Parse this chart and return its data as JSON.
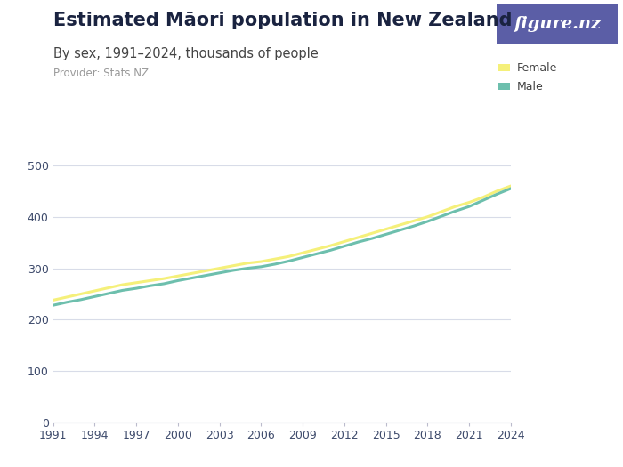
{
  "title": "Estimated Māori population in New Zealand",
  "subtitle": "By sex, 1991–2024, thousands of people",
  "provider": "Provider: Stats NZ",
  "logo_text": "figure.nz",
  "logo_bg": "#5b5ea6",
  "background_color": "#ffffff",
  "years": [
    1991,
    1992,
    1993,
    1994,
    1995,
    1996,
    1997,
    1998,
    1999,
    2000,
    2001,
    2002,
    2003,
    2004,
    2005,
    2006,
    2007,
    2008,
    2009,
    2010,
    2011,
    2012,
    2013,
    2014,
    2015,
    2016,
    2017,
    2018,
    2019,
    2020,
    2021,
    2022,
    2023,
    2024
  ],
  "female": [
    238,
    244,
    250,
    256,
    262,
    268,
    272,
    276,
    280,
    285,
    290,
    295,
    300,
    305,
    310,
    313,
    318,
    323,
    330,
    337,
    344,
    352,
    360,
    368,
    376,
    384,
    392,
    400,
    410,
    420,
    428,
    438,
    450,
    460
  ],
  "male": [
    228,
    234,
    239,
    245,
    251,
    257,
    261,
    266,
    270,
    276,
    281,
    286,
    291,
    296,
    300,
    303,
    308,
    314,
    321,
    328,
    335,
    343,
    351,
    358,
    366,
    374,
    382,
    391,
    401,
    411,
    420,
    432,
    444,
    455
  ],
  "female_color": "#f5f07a",
  "male_color": "#6dbfad",
  "ylim": [
    0,
    540
  ],
  "yticks": [
    0,
    100,
    200,
    300,
    400,
    500
  ],
  "xticks": [
    1991,
    1994,
    1997,
    2000,
    2003,
    2006,
    2009,
    2012,
    2015,
    2018,
    2021,
    2024
  ],
  "title_fontsize": 15,
  "subtitle_fontsize": 10.5,
  "provider_fontsize": 8.5,
  "tick_label_color": "#3d4a6b",
  "grid_color": "#d8dce8",
  "line_width": 2.2
}
